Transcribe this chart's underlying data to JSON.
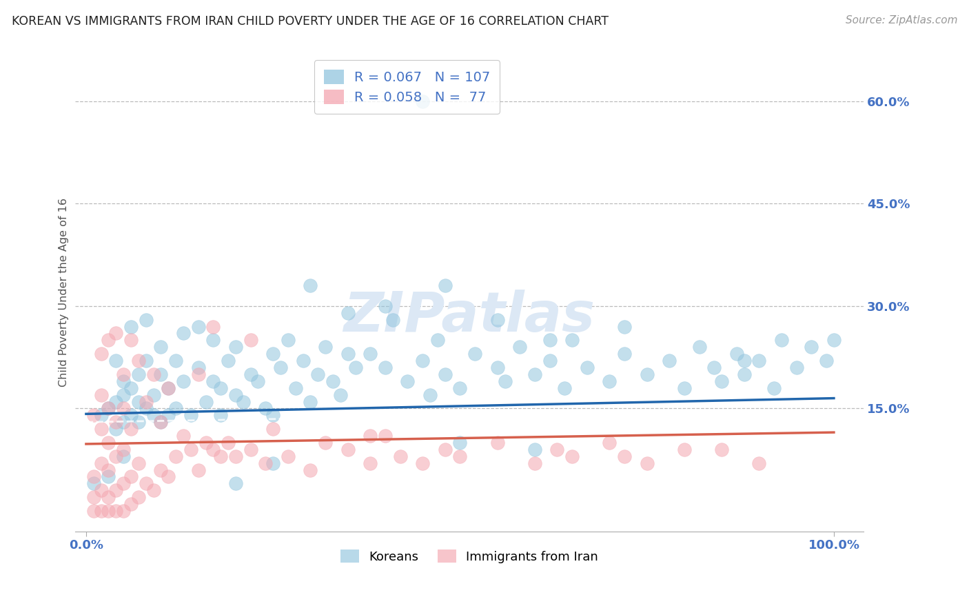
{
  "title": "KOREAN VS IMMIGRANTS FROM IRAN CHILD POVERTY UNDER THE AGE OF 16 CORRELATION CHART",
  "source": "Source: ZipAtlas.com",
  "ylabel": "Child Poverty Under the Age of 16",
  "korean_R": 0.067,
  "korean_N": 107,
  "iran_R": 0.058,
  "iran_N": 77,
  "korean_color": "#92c5de",
  "iran_color": "#f4a6b0",
  "korean_trend_color": "#2166ac",
  "iran_trend_color": "#d6604d",
  "ylim": [
    -0.03,
    0.67
  ],
  "xlim": [
    -0.015,
    1.04
  ],
  "yticks": [
    0.15,
    0.3,
    0.45,
    0.6
  ],
  "ytick_labels": [
    "15.0%",
    "30.0%",
    "45.0%",
    "60.0%"
  ],
  "background_color": "#ffffff",
  "grid_color": "#bbbbbb",
  "title_color": "#222222",
  "tick_color": "#4472c4",
  "watermark_text": "ZIPatlas",
  "watermark_color": "#dce8f5",
  "legend_bottom_label1": "Koreans",
  "legend_bottom_label2": "Immigrants from Iran",
  "korean_scatter_x": [
    0.01,
    0.02,
    0.03,
    0.03,
    0.04,
    0.04,
    0.04,
    0.05,
    0.05,
    0.05,
    0.05,
    0.06,
    0.06,
    0.06,
    0.07,
    0.07,
    0.07,
    0.08,
    0.08,
    0.08,
    0.09,
    0.09,
    0.1,
    0.1,
    0.1,
    0.11,
    0.11,
    0.12,
    0.12,
    0.13,
    0.13,
    0.14,
    0.15,
    0.15,
    0.16,
    0.17,
    0.17,
    0.18,
    0.18,
    0.19,
    0.2,
    0.2,
    0.21,
    0.22,
    0.23,
    0.24,
    0.25,
    0.25,
    0.26,
    0.27,
    0.28,
    0.29,
    0.3,
    0.31,
    0.32,
    0.33,
    0.34,
    0.35,
    0.36,
    0.38,
    0.4,
    0.41,
    0.43,
    0.45,
    0.46,
    0.47,
    0.48,
    0.5,
    0.52,
    0.55,
    0.56,
    0.58,
    0.6,
    0.62,
    0.64,
    0.65,
    0.67,
    0.7,
    0.72,
    0.75,
    0.78,
    0.8,
    0.82,
    0.84,
    0.85,
    0.87,
    0.88,
    0.9,
    0.92,
    0.93,
    0.95,
    0.97,
    0.99,
    1.0,
    0.88,
    0.3,
    0.48,
    0.62,
    0.55,
    0.4,
    0.35,
    0.72,
    0.2,
    0.25,
    0.5,
    0.6,
    0.45
  ],
  "korean_scatter_y": [
    0.04,
    0.14,
    0.05,
    0.15,
    0.12,
    0.16,
    0.22,
    0.13,
    0.17,
    0.08,
    0.19,
    0.14,
    0.18,
    0.27,
    0.16,
    0.13,
    0.2,
    0.15,
    0.22,
    0.28,
    0.17,
    0.14,
    0.13,
    0.2,
    0.24,
    0.18,
    0.14,
    0.22,
    0.15,
    0.19,
    0.26,
    0.14,
    0.27,
    0.21,
    0.16,
    0.19,
    0.25,
    0.18,
    0.14,
    0.22,
    0.17,
    0.24,
    0.16,
    0.2,
    0.19,
    0.15,
    0.23,
    0.14,
    0.21,
    0.25,
    0.18,
    0.22,
    0.16,
    0.2,
    0.24,
    0.19,
    0.17,
    0.23,
    0.21,
    0.23,
    0.21,
    0.28,
    0.19,
    0.22,
    0.17,
    0.25,
    0.2,
    0.18,
    0.23,
    0.21,
    0.19,
    0.24,
    0.2,
    0.22,
    0.18,
    0.25,
    0.21,
    0.19,
    0.23,
    0.2,
    0.22,
    0.18,
    0.24,
    0.21,
    0.19,
    0.23,
    0.2,
    0.22,
    0.18,
    0.25,
    0.21,
    0.24,
    0.22,
    0.25,
    0.22,
    0.33,
    0.33,
    0.25,
    0.28,
    0.3,
    0.29,
    0.27,
    0.04,
    0.07,
    0.1,
    0.09,
    0.6
  ],
  "iran_scatter_x": [
    0.01,
    0.01,
    0.01,
    0.01,
    0.02,
    0.02,
    0.02,
    0.02,
    0.02,
    0.02,
    0.03,
    0.03,
    0.03,
    0.03,
    0.03,
    0.03,
    0.04,
    0.04,
    0.04,
    0.04,
    0.04,
    0.05,
    0.05,
    0.05,
    0.05,
    0.05,
    0.06,
    0.06,
    0.06,
    0.06,
    0.07,
    0.07,
    0.07,
    0.08,
    0.08,
    0.09,
    0.09,
    0.1,
    0.1,
    0.11,
    0.11,
    0.12,
    0.13,
    0.14,
    0.15,
    0.15,
    0.16,
    0.17,
    0.18,
    0.19,
    0.2,
    0.22,
    0.24,
    0.25,
    0.27,
    0.3,
    0.32,
    0.35,
    0.38,
    0.4,
    0.42,
    0.45,
    0.48,
    0.5,
    0.55,
    0.6,
    0.63,
    0.65,
    0.7,
    0.72,
    0.75,
    0.8,
    0.85,
    0.9,
    0.17,
    0.22,
    0.38
  ],
  "iran_scatter_y": [
    0.0,
    0.02,
    0.05,
    0.14,
    0.0,
    0.03,
    0.07,
    0.12,
    0.17,
    0.23,
    0.0,
    0.02,
    0.06,
    0.1,
    0.15,
    0.25,
    0.0,
    0.03,
    0.08,
    0.13,
    0.26,
    0.0,
    0.04,
    0.09,
    0.15,
    0.2,
    0.01,
    0.05,
    0.12,
    0.25,
    0.02,
    0.07,
    0.22,
    0.04,
    0.16,
    0.03,
    0.2,
    0.06,
    0.13,
    0.05,
    0.18,
    0.08,
    0.11,
    0.09,
    0.06,
    0.2,
    0.1,
    0.09,
    0.08,
    0.1,
    0.08,
    0.09,
    0.07,
    0.12,
    0.08,
    0.06,
    0.1,
    0.09,
    0.07,
    0.11,
    0.08,
    0.07,
    0.09,
    0.08,
    0.1,
    0.07,
    0.09,
    0.08,
    0.1,
    0.08,
    0.07,
    0.09,
    0.09,
    0.07,
    0.27,
    0.25,
    0.11
  ]
}
